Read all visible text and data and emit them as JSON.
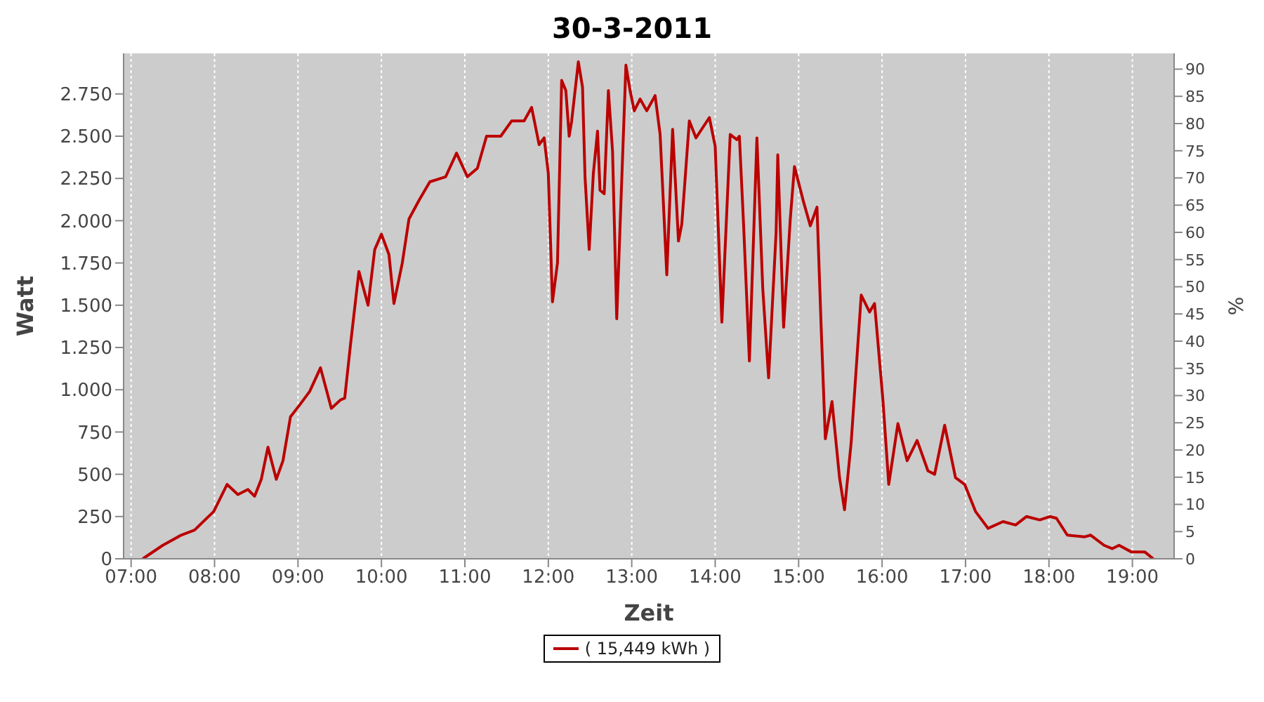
{
  "chart_data": {
    "type": "line",
    "title": "30-3-2011",
    "xlabel": "Zeit",
    "ylabel": "Watt",
    "y2label": "%",
    "x": [
      7.14,
      7.38,
      7.6,
      7.76,
      7.99,
      8.15,
      8.28,
      8.4,
      8.48,
      8.56,
      8.64,
      8.74,
      8.82,
      8.91,
      9.02,
      9.14,
      9.27,
      9.4,
      9.51,
      9.56,
      9.63,
      9.73,
      9.84,
      9.92,
      10.0,
      10.09,
      10.15,
      10.25,
      10.33,
      10.45,
      10.58,
      10.77,
      10.9,
      11.03,
      11.15,
      11.26,
      11.43,
      11.56,
      11.71,
      11.8,
      11.89,
      11.95,
      12.0,
      12.05,
      12.11,
      12.16,
      12.21,
      12.25,
      12.28,
      12.36,
      12.41,
      12.44,
      12.49,
      12.54,
      12.59,
      12.62,
      12.67,
      12.72,
      12.77,
      12.82,
      12.93,
      12.98,
      13.03,
      13.1,
      13.18,
      13.28,
      13.34,
      13.42,
      13.49,
      13.56,
      13.6,
      13.69,
      13.77,
      13.93,
      14.0,
      14.08,
      14.18,
      14.26,
      14.29,
      14.34,
      14.41,
      14.5,
      14.57,
      14.64,
      14.73,
      14.75,
      14.82,
      14.9,
      14.95,
      15.06,
      15.14,
      15.22,
      15.27,
      15.32,
      15.4,
      15.49,
      15.55,
      15.63,
      15.75,
      15.85,
      15.91,
      16.01,
      16.08,
      16.19,
      16.3,
      16.42,
      16.55,
      16.63,
      16.75,
      16.88,
      16.99,
      17.12,
      17.27,
      17.45,
      17.6,
      17.73,
      17.89,
      18.01,
      18.09,
      18.22,
      18.43,
      18.5,
      18.66,
      18.76,
      18.84,
      18.99,
      19.15,
      19.25
    ],
    "series": [
      {
        "name": "( 15,449 kWh )",
        "color": "#bb0000",
        "values": [
          0,
          80,
          140,
          170,
          280,
          440,
          380,
          410,
          370,
          470,
          660,
          470,
          580,
          840,
          910,
          990,
          1130,
          890,
          940,
          950,
          1270,
          1700,
          1500,
          1830,
          1920,
          1800,
          1510,
          1750,
          2010,
          2120,
          2230,
          2260,
          2400,
          2260,
          2310,
          2500,
          2500,
          2590,
          2590,
          2670,
          2450,
          2490,
          2280,
          1520,
          1750,
          2830,
          2770,
          2500,
          2590,
          2940,
          2790,
          2260,
          1830,
          2280,
          2530,
          2180,
          2160,
          2770,
          2410,
          1420,
          2920,
          2770,
          2650,
          2720,
          2650,
          2740,
          2510,
          1680,
          2540,
          1880,
          1980,
          2590,
          2490,
          2610,
          2440,
          1400,
          2510,
          2480,
          2500,
          1980,
          1170,
          2490,
          1600,
          1070,
          1930,
          2390,
          1370,
          2010,
          2320,
          2110,
          1970,
          2080,
          1370,
          710,
          930,
          480,
          290,
          690,
          1560,
          1460,
          1510,
          940,
          440,
          800,
          580,
          700,
          520,
          500,
          790,
          480,
          440,
          280,
          180,
          220,
          200,
          250,
          230,
          250,
          240,
          140,
          130,
          140,
          80,
          60,
          80,
          40,
          40,
          0
        ]
      }
    ],
    "xlim": [
      6.91,
      19.5
    ],
    "xticks": [
      {
        "value": 7,
        "label": "07:00"
      },
      {
        "value": 8,
        "label": "08:00"
      },
      {
        "value": 9,
        "label": "09:00"
      },
      {
        "value": 10,
        "label": "10:00"
      },
      {
        "value": 11,
        "label": "11:00"
      },
      {
        "value": 12,
        "label": "12:00"
      },
      {
        "value": 13,
        "label": "13:00"
      },
      {
        "value": 14,
        "label": "14:00"
      },
      {
        "value": 15,
        "label": "15:00"
      },
      {
        "value": 16,
        "label": "16:00"
      },
      {
        "value": 17,
        "label": "17:00"
      },
      {
        "value": 18,
        "label": "18:00"
      },
      {
        "value": 19,
        "label": "19:00"
      }
    ],
    "ylim": [
      0,
      2990
    ],
    "yticks": [
      0,
      250,
      500,
      750,
      {
        "value": 1000,
        "label": "1.000"
      },
      {
        "value": 1250,
        "label": "1.250"
      },
      {
        "value": 1500,
        "label": "1.500"
      },
      {
        "value": 1750,
        "label": "1.750"
      },
      {
        "value": 2000,
        "label": "2.000"
      },
      {
        "value": 2250,
        "label": "2.250"
      },
      {
        "value": 2500,
        "label": "2.500"
      },
      {
        "value": 2750,
        "label": "2.750"
      }
    ],
    "y2lim": [
      0,
      92.9
    ],
    "y2ticks": [
      0,
      5,
      10,
      15,
      20,
      25,
      30,
      35,
      40,
      45,
      50,
      55,
      60,
      65,
      70,
      75,
      80,
      85,
      90
    ],
    "grid": true,
    "legend": "bottom",
    "marker": "none",
    "line_style": "solid"
  }
}
